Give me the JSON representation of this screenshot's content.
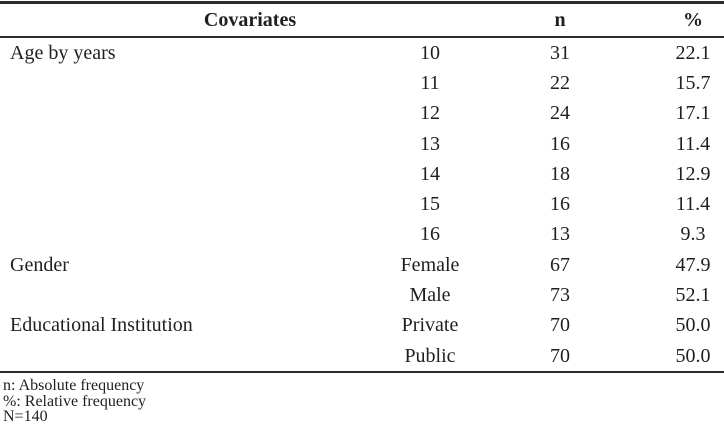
{
  "colors": {
    "text": "#1f1f1f",
    "rule": "#2c2c2c",
    "background": "#ffffff"
  },
  "table": {
    "headers": {
      "covariates": "Covariates",
      "n": "n",
      "pct": "%"
    },
    "rows": [
      {
        "label": "Age by years",
        "value": "10",
        "n": "31",
        "pct": "22.1"
      },
      {
        "label": "",
        "value": "11",
        "n": "22",
        "pct": "15.7"
      },
      {
        "label": "",
        "value": "12",
        "n": "24",
        "pct": "17.1"
      },
      {
        "label": "",
        "value": "13",
        "n": "16",
        "pct": "11.4"
      },
      {
        "label": "",
        "value": "14",
        "n": "18",
        "pct": "12.9"
      },
      {
        "label": "",
        "value": "15",
        "n": "16",
        "pct": "11.4"
      },
      {
        "label": "",
        "value": "16",
        "n": "13",
        "pct": "9.3"
      },
      {
        "label": "Gender",
        "value": "Female",
        "n": "67",
        "pct": "47.9"
      },
      {
        "label": "",
        "value": "Male",
        "n": "73",
        "pct": "52.1"
      },
      {
        "label": "Educational Institution",
        "value": "Private",
        "n": "70",
        "pct": "50.0"
      },
      {
        "label": "",
        "value": "Public",
        "n": "70",
        "pct": "50.0"
      }
    ],
    "footnotes": [
      "n: Absolute frequency",
      "%: Relative frequency",
      "N=140"
    ]
  }
}
